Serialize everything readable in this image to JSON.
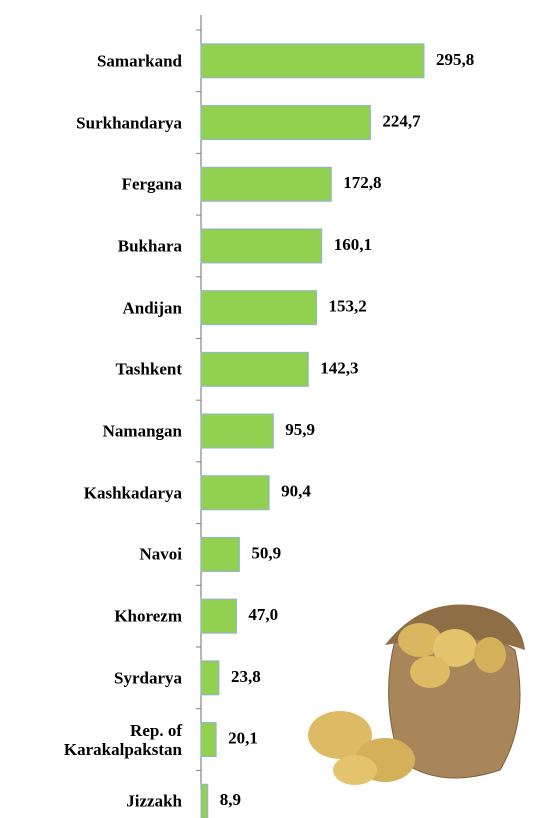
{
  "chart_data": {
    "type": "bar",
    "orientation": "horizontal",
    "categories": [
      "Samarkand",
      "Surkhandarya",
      "Fergana",
      "Bukhara",
      "Andijan",
      "Tashkent",
      "Namangan",
      "Kashkadarya",
      "Navoi",
      "Khorezm",
      "Syrdarya",
      "Rep. of Karakalpakstan",
      "Jizzakh"
    ],
    "values": [
      295.8,
      224.7,
      172.8,
      160.1,
      153.2,
      142.3,
      95.9,
      90.4,
      50.9,
      47.0,
      23.8,
      20.1,
      8.9
    ],
    "value_labels": [
      "295,8",
      "224,7",
      "172,8",
      "160,1",
      "153,2",
      "142,3",
      "95,9",
      "90,4",
      "50,9",
      "47,0",
      "23,8",
      "20,1",
      "8,9"
    ],
    "color": "#92d050"
  }
}
